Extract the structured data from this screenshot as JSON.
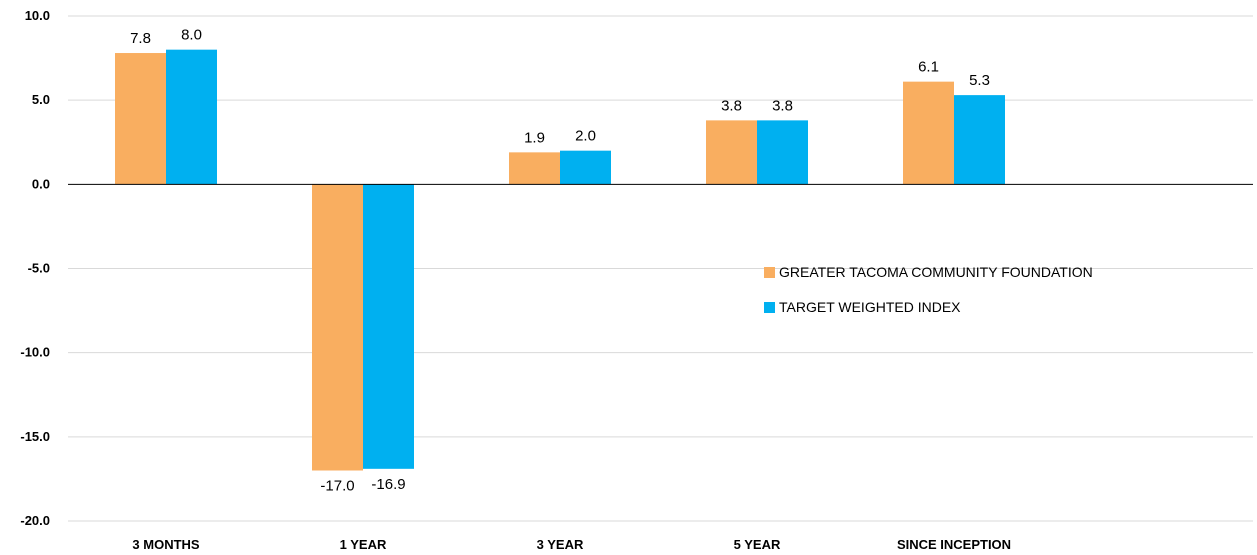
{
  "chart_data": {
    "type": "bar",
    "categories": [
      "3 MONTHS",
      "1 YEAR",
      "3 YEAR",
      "5 YEAR",
      "SINCE INCEPTION"
    ],
    "series": [
      {
        "name": "GREATER TACOMA COMMUNITY FOUNDATION",
        "values": [
          7.8,
          -17.0,
          1.9,
          3.8,
          6.1
        ],
        "labels": [
          "7.8",
          "-17.0",
          "1.9",
          "3.8",
          "6.1"
        ],
        "color": "#F9AE60"
      },
      {
        "name": "TARGET WEIGHTED INDEX",
        "values": [
          8.0,
          -16.9,
          2.0,
          3.8,
          5.3
        ],
        "labels": [
          "8.0",
          "-16.9",
          "2.0",
          "3.8",
          "5.3"
        ],
        "color": "#00B0F0"
      }
    ],
    "yticks": [
      "10.0",
      "5.0",
      "0.0",
      "-5.0",
      "-10.0",
      "-15.0",
      "-20.0"
    ],
    "ylim": [
      -20,
      10
    ],
    "grid": true,
    "legend_position": "right-middle",
    "title": "",
    "xlabel": "",
    "ylabel": ""
  }
}
